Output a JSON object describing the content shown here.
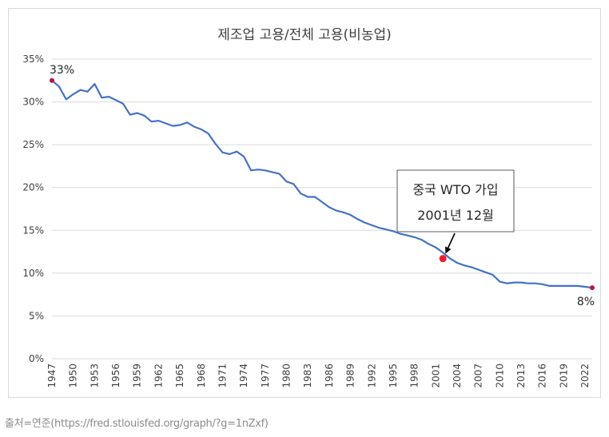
{
  "source_caption": "출처=연준(https://fred.stlouisfed.org/graph/?g=1nZxf)",
  "chart_data": {
    "type": "line",
    "title": "제조업 고용/전체 고용(비농업)",
    "xlabel": "",
    "ylabel": "",
    "ylim": [
      0,
      35
    ],
    "xlim": [
      1947,
      2023
    ],
    "grid": true,
    "y_ticks": [
      0,
      5,
      10,
      15,
      20,
      25,
      30,
      35
    ],
    "y_tick_labels": [
      "0%",
      "5%",
      "10%",
      "15%",
      "20%",
      "25%",
      "30%",
      "35%"
    ],
    "x_ticks": [
      1947,
      1950,
      1953,
      1956,
      1959,
      1962,
      1965,
      1968,
      1971,
      1974,
      1977,
      1980,
      1983,
      1986,
      1989,
      1992,
      1995,
      1998,
      2001,
      2004,
      2007,
      2010,
      2013,
      2016,
      2019,
      2022
    ],
    "x_tick_labels": [
      "1947",
      "1950",
      "1953",
      "1956",
      "1959",
      "1962",
      "1965",
      "1968",
      "1971",
      "1974",
      "1977",
      "1980",
      "1983",
      "1986",
      "1989",
      "1992",
      "1995",
      "1998",
      "2001",
      "2004",
      "2007",
      "2010",
      "2013",
      "2016",
      "2019",
      "2022"
    ],
    "line_color": "#4472c4",
    "marker_color": "#c0143c",
    "highlight_color": "#e8202a",
    "series": [
      {
        "x": [
          1947,
          1948,
          1949,
          1950,
          1951,
          1952,
          1953,
          1954,
          1955,
          1956,
          1957,
          1958,
          1959,
          1960,
          1961,
          1962,
          1963,
          1964,
          1965,
          1966,
          1967,
          1968,
          1969,
          1970,
          1971,
          1972,
          1973,
          1974,
          1975,
          1976,
          1977,
          1978,
          1979,
          1980,
          1981,
          1982,
          1983,
          1984,
          1985,
          1986,
          1987,
          1988,
          1989,
          1990,
          1991,
          1992,
          1993,
          1994,
          1995,
          1996,
          1997,
          1998,
          1999,
          2000,
          2001,
          2002,
          2003,
          2004,
          2005,
          2006,
          2007,
          2008,
          2009,
          2010,
          2011,
          2012,
          2013,
          2014,
          2015,
          2016,
          2017,
          2018,
          2019,
          2020,
          2021,
          2022,
          2023
        ],
        "values": [
          32.5,
          31.8,
          30.3,
          30.9,
          31.4,
          31.2,
          32.1,
          30.5,
          30.6,
          30.2,
          29.8,
          28.5,
          28.7,
          28.4,
          27.7,
          27.8,
          27.5,
          27.2,
          27.3,
          27.6,
          27.1,
          26.8,
          26.3,
          25.1,
          24.1,
          23.9,
          24.2,
          23.6,
          22.0,
          22.1,
          22.0,
          21.8,
          21.6,
          20.7,
          20.4,
          19.3,
          18.9,
          18.9,
          18.3,
          17.7,
          17.3,
          17.1,
          16.8,
          16.3,
          15.9,
          15.6,
          15.3,
          15.1,
          14.9,
          14.6,
          14.4,
          14.2,
          13.9,
          13.4,
          13.0,
          12.4,
          11.7,
          11.2,
          10.9,
          10.7,
          10.4,
          10.1,
          9.8,
          9.0,
          8.8,
          8.9,
          8.9,
          8.8,
          8.8,
          8.7,
          8.5,
          8.5,
          8.5,
          8.5,
          8.5,
          8.4,
          8.3
        ]
      }
    ],
    "annotations": [
      {
        "x": 1947,
        "y": 32.5,
        "label": "33%"
      },
      {
        "x": 2023,
        "y": 8.3,
        "label": "8%"
      }
    ],
    "callout": {
      "x": 2002,
      "y": 11.7,
      "line1": "중국 WTO 가입",
      "line2": "2001년 12월"
    }
  }
}
